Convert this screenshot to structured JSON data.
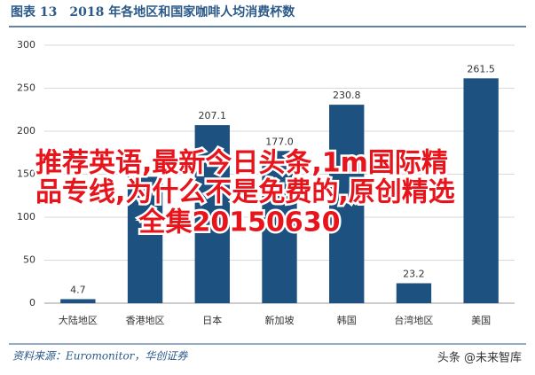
{
  "chart_data": {
    "type": "bar",
    "title": "图表 13　2018 年各地区和国家咖啡人均消费杯数",
    "categories": [
      "大陆地区",
      "香港地区",
      "日本",
      "新加坡",
      "韩国",
      "台湾地区",
      "美国"
    ],
    "values": [
      4.7,
      147,
      207.1,
      177,
      230.8,
      23.2,
      261.5
    ],
    "value_labels": [
      "4.7",
      null,
      "207.1",
      "177.0",
      "230.8",
      "23.2",
      "261.5"
    ],
    "color": "#1d5180",
    "ylim": [
      0,
      300
    ],
    "yticks": [
      0,
      50,
      100,
      150,
      200,
      250,
      300
    ],
    "grid": true,
    "source": "资料来源：Euromonitor，华创证券"
  },
  "overlay": [
    "推荐英语,最新今日头条,1m国际精",
    "品专线,为什么不是免费的,原创精选",
    "全集20150630"
  ],
  "watermark": "头条 @未来智库"
}
